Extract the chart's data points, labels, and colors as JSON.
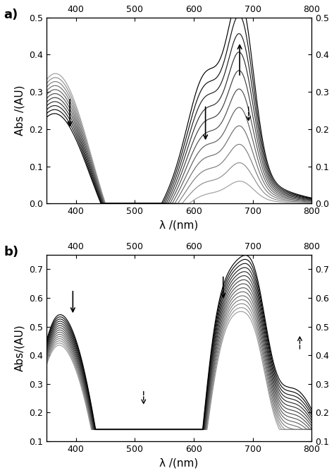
{
  "panel_a": {
    "xlim": [
      350,
      800
    ],
    "ylim": [
      0.0,
      0.5
    ],
    "yticks": [
      0.0,
      0.1,
      0.2,
      0.3,
      0.4,
      0.5
    ],
    "xlabel": "λ /(nm)",
    "ylabel": "Abs /(AU)",
    "n_curves": 11,
    "xticks_bottom": [
      400,
      500,
      600,
      700,
      800
    ],
    "xticks_top": [
      400,
      500,
      600,
      700,
      800
    ]
  },
  "panel_b": {
    "xlim": [
      350,
      800
    ],
    "ylim": [
      0.1,
      0.75
    ],
    "yticks": [
      0.1,
      0.2,
      0.3,
      0.4,
      0.5,
      0.6,
      0.7
    ],
    "xlabel": "λ /(nm)",
    "ylabel": "Abs/(AU)",
    "n_curves": 15,
    "xticks_bottom": [
      400,
      500,
      600,
      700,
      800
    ],
    "xticks_top": [
      400,
      500,
      600,
      700,
      800
    ]
  }
}
